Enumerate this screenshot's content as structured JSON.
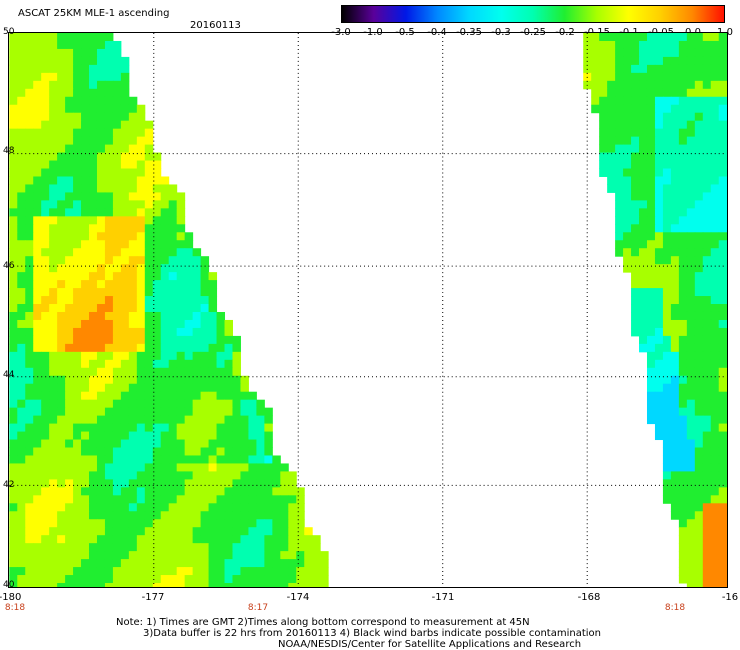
{
  "header": {
    "title": "ASCAT 25KM MLE-1 ascending",
    "date": "20160113"
  },
  "colorbar": {
    "labels": [
      "-3.0",
      "-1.0",
      "-0.5",
      "-0.4",
      "-0.35",
      "-0.3",
      "-0.25",
      "-0.2",
      "-0.15",
      "-0.1",
      "-0.05",
      "0.0",
      "1.0"
    ],
    "colors": [
      "#000000",
      "#5a009a",
      "#0018e6",
      "#0088ff",
      "#00d8ff",
      "#00ffee",
      "#00ffb0",
      "#20ee30",
      "#a8ff00",
      "#ffff00",
      "#ffd000",
      "#ff8800",
      "#ff1000"
    ]
  },
  "map": {
    "lat_labels": [
      "50",
      "48",
      "46",
      "44",
      "42",
      "40"
    ],
    "lon_labels": [
      "-180",
      "-177",
      "-174",
      "-171",
      "-168",
      "-16"
    ],
    "time_labels": [
      "8:18",
      "8:17",
      "8:18"
    ]
  },
  "notes": {
    "line1": "Note: 1) Times are GMT 2)Times along bottom correspond to measurement at 45N",
    "line2": "3)Data buffer is 22 hrs from 20160113 4) Black wind barbs indicate possible contamination",
    "line3": "NOAA/NESDIS/Center for Satellite Applications and Research"
  }
}
